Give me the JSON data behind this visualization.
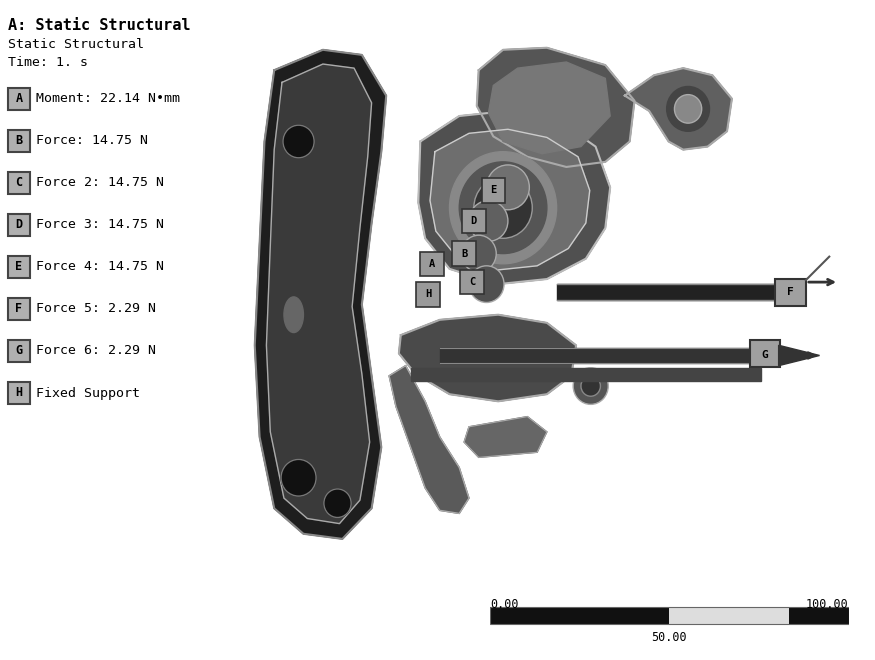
{
  "title_bold": "A: Static Structural",
  "subtitle1": "Static Structural",
  "subtitle2": "Time: 1. s",
  "legend_items": [
    {
      "label": "A",
      "text": "Moment: 22.14 N•mm"
    },
    {
      "label": "B",
      "text": "Force: 14.75 N"
    },
    {
      "label": "C",
      "text": "Force 2: 14.75 N"
    },
    {
      "label": "D",
      "text": "Force 3: 14.75 N"
    },
    {
      "label": "E",
      "text": "Force 4: 14.75 N"
    },
    {
      "label": "F",
      "text": "Force 5: 2.29 N"
    },
    {
      "label": "G",
      "text": "Force 6: 2.29 N"
    },
    {
      "label": "H",
      "text": "Fixed Support"
    }
  ],
  "scale_label_left": "0.00",
  "scale_label_mid": "50.00",
  "scale_label_right": "100.00",
  "bg_color": "#ffffff",
  "box_bg": "#b0b0b0",
  "box_edge": "#444444",
  "text_color": "#000000",
  "title_fontsize": 11,
  "label_fontsize": 9.5
}
